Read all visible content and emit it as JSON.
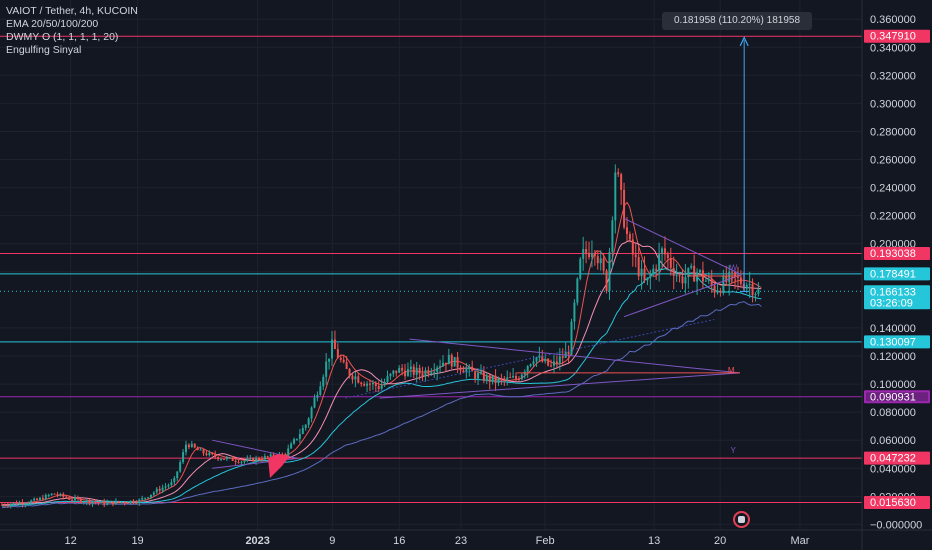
{
  "header": {
    "symbol": "VAIOT / Tether, 4h, KUCOIN",
    "indicators": [
      "EMA 20/50/100/200",
      "DWMY O (1, 1, 1, 1, 20)",
      "Engulfing Sinyal"
    ]
  },
  "measure_label": "0.181958 (110.20%) 181958",
  "annotations": [
    "M",
    "D",
    "W",
    "Y"
  ],
  "colors": {
    "background": "#131722",
    "grid": "#1e222d",
    "axis_text": "#d1d4dc",
    "up": "#26a69a",
    "down": "#ef5350",
    "pink_line": "#f23664",
    "cyan_line": "#26c6da",
    "purple_line": "#9c27b0",
    "ema20": "#ef5350",
    "ema50": "#f48fb1",
    "ema100": "#26c6da",
    "ema200": "#5c6bc0",
    "arrow": "#f23664"
  },
  "chart_data": {
    "type": "candlestick",
    "y_ticks": [
      "0.360000",
      "0.340000",
      "0.320000",
      "0.300000",
      "0.280000",
      "0.260000",
      "0.240000",
      "0.220000",
      "0.200000",
      "0.180000",
      "0.140000",
      "0.120000",
      "0.100000",
      "0.080000",
      "0.060000",
      "0.040000",
      "0.020000",
      "−0.000000"
    ],
    "x_ticks": [
      "12",
      "19",
      "2023",
      "9",
      "16",
      "23",
      "Feb",
      "13",
      "20",
      "Mar"
    ],
    "ylim": [
      -0.004,
      0.368
    ],
    "grid": true,
    "price_labels": [
      {
        "value": 0.34791,
        "label": "0.347910",
        "kind": "pink"
      },
      {
        "value": 0.193038,
        "label": "0.193038",
        "kind": "pink"
      },
      {
        "value": 0.178491,
        "label": "0.178491",
        "kind": "cyan"
      },
      {
        "value": 0.166133,
        "label": "0.166133",
        "sub": "03:26:09",
        "kind": "current"
      },
      {
        "value": 0.130097,
        "label": "0.130097",
        "kind": "cyan"
      },
      {
        "value": 0.090931,
        "label": "0.090931",
        "kind": "purple"
      },
      {
        "value": 0.047232,
        "label": "0.047232",
        "kind": "pink"
      },
      {
        "value": 0.01563,
        "label": "0.015630",
        "kind": "pink"
      }
    ],
    "price_path": [
      [
        0.0,
        0.014
      ],
      [
        0.04,
        0.017
      ],
      [
        0.06,
        0.022
      ],
      [
        0.08,
        0.018
      ],
      [
        0.12,
        0.015
      ],
      [
        0.16,
        0.017
      ],
      [
        0.18,
        0.024
      ],
      [
        0.2,
        0.03
      ],
      [
        0.215,
        0.058
      ],
      [
        0.23,
        0.052
      ],
      [
        0.25,
        0.048
      ],
      [
        0.28,
        0.045
      ],
      [
        0.31,
        0.048
      ],
      [
        0.33,
        0.05
      ],
      [
        0.355,
        0.072
      ],
      [
        0.37,
        0.1
      ],
      [
        0.385,
        0.128
      ],
      [
        0.4,
        0.11
      ],
      [
        0.42,
        0.102
      ],
      [
        0.44,
        0.098
      ],
      [
        0.46,
        0.11
      ],
      [
        0.49,
        0.108
      ],
      [
        0.52,
        0.118
      ],
      [
        0.55,
        0.107
      ],
      [
        0.575,
        0.102
      ],
      [
        0.6,
        0.104
      ],
      [
        0.62,
        0.12
      ],
      [
        0.64,
        0.112
      ],
      [
        0.66,
        0.123
      ],
      [
        0.675,
        0.19
      ],
      [
        0.69,
        0.2
      ],
      [
        0.705,
        0.17
      ],
      [
        0.715,
        0.255
      ],
      [
        0.73,
        0.2
      ],
      [
        0.75,
        0.17
      ],
      [
        0.77,
        0.195
      ],
      [
        0.79,
        0.175
      ],
      [
        0.81,
        0.18
      ],
      [
        0.83,
        0.168
      ],
      [
        0.85,
        0.175
      ],
      [
        0.87,
        0.172
      ],
      [
        0.88,
        0.166
      ]
    ]
  }
}
